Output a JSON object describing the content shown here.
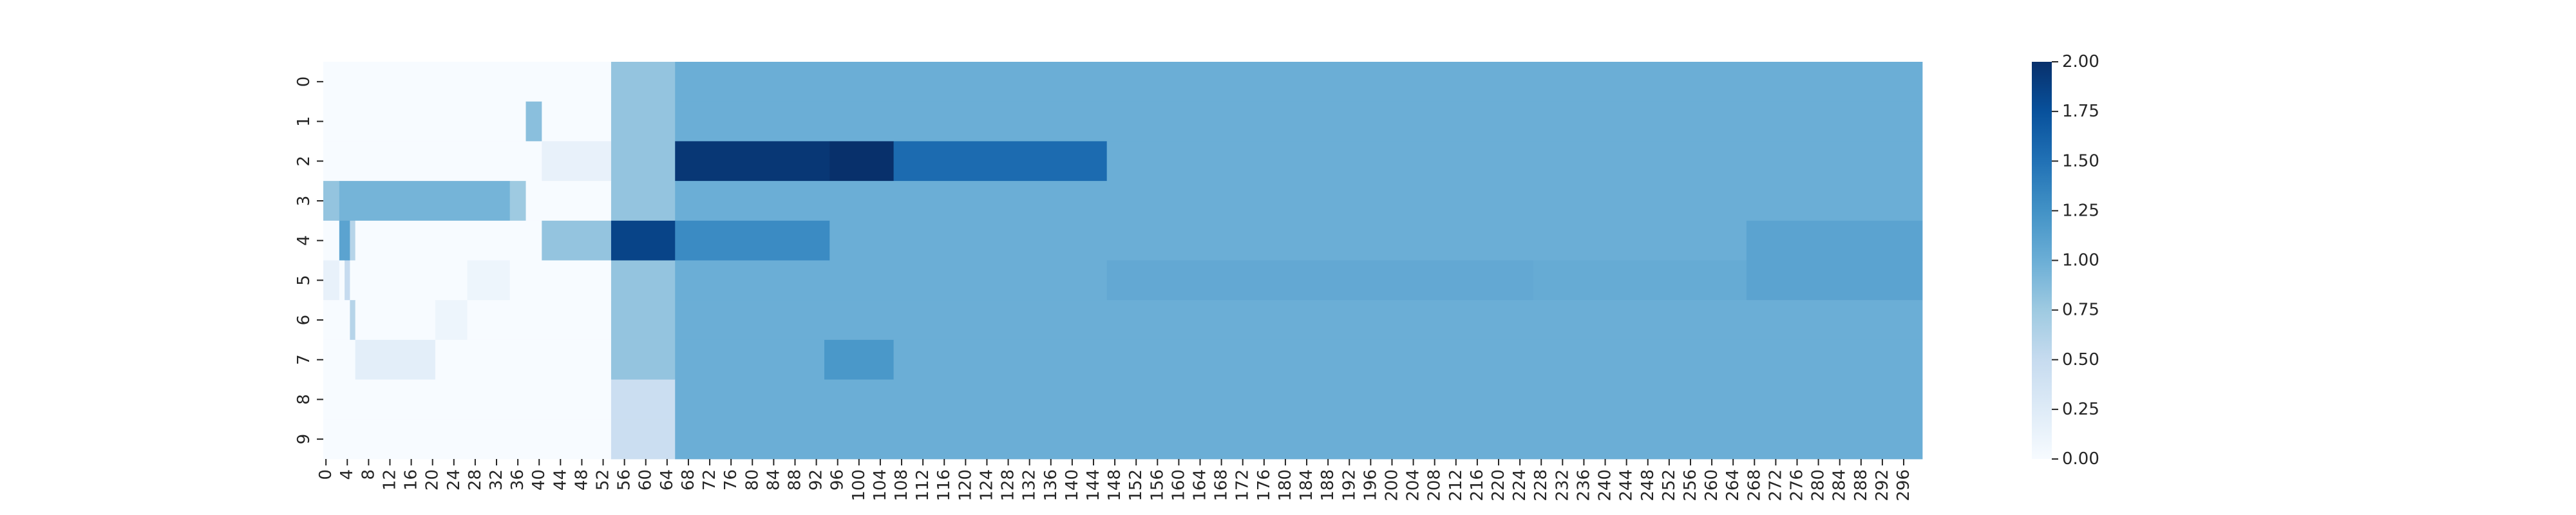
{
  "chart_data": {
    "type": "heatmap",
    "title": "",
    "xlabel": "",
    "ylabel": "",
    "n_cols": 300,
    "rows": [
      "0",
      "1",
      "2",
      "3",
      "4",
      "5",
      "6",
      "7",
      "8",
      "9"
    ],
    "x_tick_labels": [
      "0",
      "4",
      "8",
      "12",
      "16",
      "20",
      "24",
      "28",
      "32",
      "36",
      "40",
      "44",
      "48",
      "52",
      "56",
      "60",
      "64",
      "68",
      "72",
      "76",
      "80",
      "84",
      "88",
      "92",
      "96",
      "100",
      "104",
      "108",
      "112",
      "116",
      "120",
      "124",
      "128",
      "132",
      "136",
      "140",
      "144",
      "148",
      "152",
      "156",
      "160",
      "164",
      "168",
      "172",
      "176",
      "180",
      "184",
      "188",
      "192",
      "196",
      "200",
      "204",
      "208",
      "212",
      "216",
      "220",
      "224",
      "228",
      "232",
      "236",
      "240",
      "244",
      "248",
      "252",
      "256",
      "260",
      "264",
      "268",
      "272",
      "276",
      "280",
      "284",
      "288",
      "292",
      "296"
    ],
    "x_tick_step": 4,
    "colormap": "Blues",
    "colormap_stops": [
      "#f7fbff",
      "#deebf7",
      "#c6dbef",
      "#9ecae1",
      "#6baed6",
      "#4292c6",
      "#2171b5",
      "#08519c",
      "#08306b"
    ],
    "vmin": 0,
    "vmax": 2,
    "colorbar": {
      "ticks": [
        0,
        0.25,
        0.5,
        0.75,
        1,
        1.25,
        1.5,
        1.75,
        2
      ],
      "tick_labels": [
        "0.00",
        "0.25",
        "0.50",
        "0.75",
        "1.00",
        "1.25",
        "1.50",
        "1.75",
        "2.00"
      ]
    },
    "background_value": 0,
    "segments": [
      {
        "rows": [
          0,
          9
        ],
        "cols": [
          54,
          65
        ],
        "value": 0.8
      },
      {
        "rows": [
          8,
          9
        ],
        "cols": [
          54,
          65
        ],
        "value": 0.45
      },
      {
        "rows": [
          0,
          9
        ],
        "cols": [
          66,
          299
        ],
        "value": 1.0
      },
      {
        "rows": [
          1,
          1
        ],
        "cols": [
          38,
          40
        ],
        "value": 0.85
      },
      {
        "rows": [
          2,
          2
        ],
        "cols": [
          41,
          53
        ],
        "value": 0.15
      },
      {
        "rows": [
          2,
          2
        ],
        "cols": [
          66,
          94
        ],
        "value": 1.95
      },
      {
        "rows": [
          2,
          2
        ],
        "cols": [
          95,
          106
        ],
        "value": 2.0
      },
      {
        "rows": [
          2,
          2
        ],
        "cols": [
          107,
          146
        ],
        "value": 1.55
      },
      {
        "rows": [
          3,
          3
        ],
        "cols": [
          0,
          2
        ],
        "value": 0.8
      },
      {
        "rows": [
          3,
          3
        ],
        "cols": [
          3,
          34
        ],
        "value": 0.95
      },
      {
        "rows": [
          3,
          3
        ],
        "cols": [
          35,
          37
        ],
        "value": 0.75
      },
      {
        "rows": [
          4,
          4
        ],
        "cols": [
          3,
          4
        ],
        "value": 1.1
      },
      {
        "rows": [
          4,
          4
        ],
        "cols": [
          5,
          5
        ],
        "value": 0.6
      },
      {
        "rows": [
          4,
          4
        ],
        "cols": [
          41,
          53
        ],
        "value": 0.8
      },
      {
        "rows": [
          4,
          4
        ],
        "cols": [
          54,
          65
        ],
        "value": 1.85
      },
      {
        "rows": [
          4,
          4
        ],
        "cols": [
          66,
          94
        ],
        "value": 1.3
      },
      {
        "rows": [
          4,
          4
        ],
        "cols": [
          267,
          299
        ],
        "value": 1.1
      },
      {
        "rows": [
          5,
          5
        ],
        "cols": [
          0,
          2
        ],
        "value": 0.15
      },
      {
        "rows": [
          5,
          5
        ],
        "cols": [
          4,
          4
        ],
        "value": 0.5
      },
      {
        "rows": [
          5,
          5
        ],
        "cols": [
          27,
          34
        ],
        "value": 0.1
      },
      {
        "rows": [
          5,
          5
        ],
        "cols": [
          147,
          226
        ],
        "value": 1.05
      },
      {
        "rows": [
          5,
          5
        ],
        "cols": [
          227,
          266
        ],
        "value": 1.03
      },
      {
        "rows": [
          5,
          5
        ],
        "cols": [
          267,
          299
        ],
        "value": 1.1
      },
      {
        "rows": [
          6,
          6
        ],
        "cols": [
          5,
          5
        ],
        "value": 0.6
      },
      {
        "rows": [
          6,
          6
        ],
        "cols": [
          21,
          26
        ],
        "value": 0.1
      },
      {
        "rows": [
          7,
          7
        ],
        "cols": [
          6,
          20
        ],
        "value": 0.2
      },
      {
        "rows": [
          7,
          7
        ],
        "cols": [
          94,
          106
        ],
        "value": 1.2
      }
    ]
  }
}
